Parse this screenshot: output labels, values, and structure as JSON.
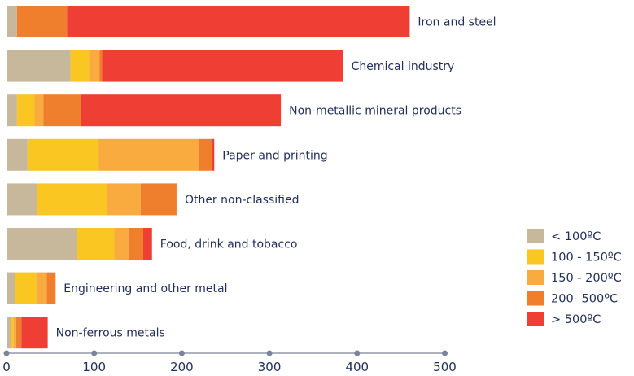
{
  "chart_data": {
    "type": "bar",
    "orientation": "horizontal",
    "stacked": true,
    "categories": [
      "Iron and steel",
      "Chemical industry",
      "Non-metallic mineral products",
      "Paper and printing",
      "Other non-classified",
      "Food, drink and tobacco",
      "Engineering and other metal",
      "Non-ferrous metals"
    ],
    "series": [
      {
        "name": "< 100ºC",
        "color": "#c8b89b",
        "values": [
          12,
          73,
          12,
          24,
          35,
          80,
          10,
          5
        ]
      },
      {
        "name": "100 - 150ºC",
        "color": "#f9c622",
        "values": [
          0,
          21,
          20,
          81,
          80,
          43,
          24,
          3
        ]
      },
      {
        "name": "150 - 200ºC",
        "color": "#f9ab3f",
        "values": [
          0,
          12,
          10,
          115,
          38,
          16,
          12,
          3
        ]
      },
      {
        "name": "200- 500ºC",
        "color": "#ef7f2d",
        "values": [
          57,
          3,
          43,
          14,
          41,
          17,
          10,
          6
        ]
      },
      {
        "name": "> 500ºC",
        "color": "#ef3f35",
        "values": [
          391,
          275,
          228,
          3,
          0,
          10,
          0,
          30
        ]
      }
    ],
    "xlim": [
      0,
      500
    ],
    "xticks": [
      "0",
      "100",
      "200",
      "300",
      "400",
      "500"
    ],
    "legend_position": "bottom-right",
    "grid": false
  }
}
